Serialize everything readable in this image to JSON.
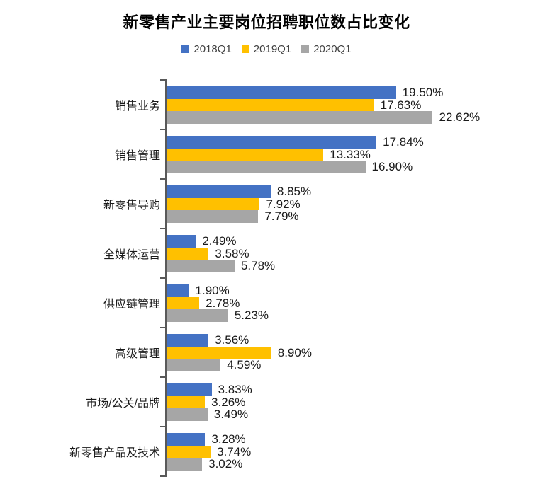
{
  "chart_data": {
    "type": "bar",
    "orientation": "horizontal",
    "title": "新零售产业主要岗位招聘职位数占比变化",
    "categories": [
      "销售业务",
      "销售管理",
      "新零售导购",
      "全媒体运营",
      "供应链管理",
      "高级管理",
      "市场/公关/品牌",
      "新零售产品及技术"
    ],
    "series": [
      {
        "name": "2018Q1",
        "color": "#4472C4",
        "values": [
          19.5,
          17.84,
          8.85,
          2.49,
          1.9,
          3.56,
          3.83,
          3.28
        ],
        "labels": [
          "19.50%",
          "17.84%",
          "8.85%",
          "2.49%",
          "1.90%",
          "3.56%",
          "3.83%",
          "3.28%"
        ]
      },
      {
        "name": "2019Q1",
        "color": "#FFC000",
        "values": [
          17.63,
          13.33,
          7.92,
          3.58,
          2.78,
          8.9,
          3.26,
          3.74
        ],
        "labels": [
          "17.63%",
          "13.33%",
          "7.92%",
          "3.58%",
          "2.78%",
          "8.90%",
          "3.26%",
          "3.74%"
        ]
      },
      {
        "name": "2020Q1",
        "color": "#A6A6A6",
        "values": [
          22.62,
          16.9,
          7.79,
          5.78,
          5.23,
          4.59,
          3.49,
          3.02
        ],
        "labels": [
          "22.62%",
          "16.90%",
          "7.79%",
          "5.78%",
          "5.23%",
          "4.59%",
          "3.49%",
          "3.02%"
        ]
      }
    ],
    "value_unit": "%",
    "xlim": [
      0,
      25
    ],
    "grid": false,
    "legend_position": "top",
    "axis_color": "#595959",
    "text_color": "#1a1a1a"
  }
}
